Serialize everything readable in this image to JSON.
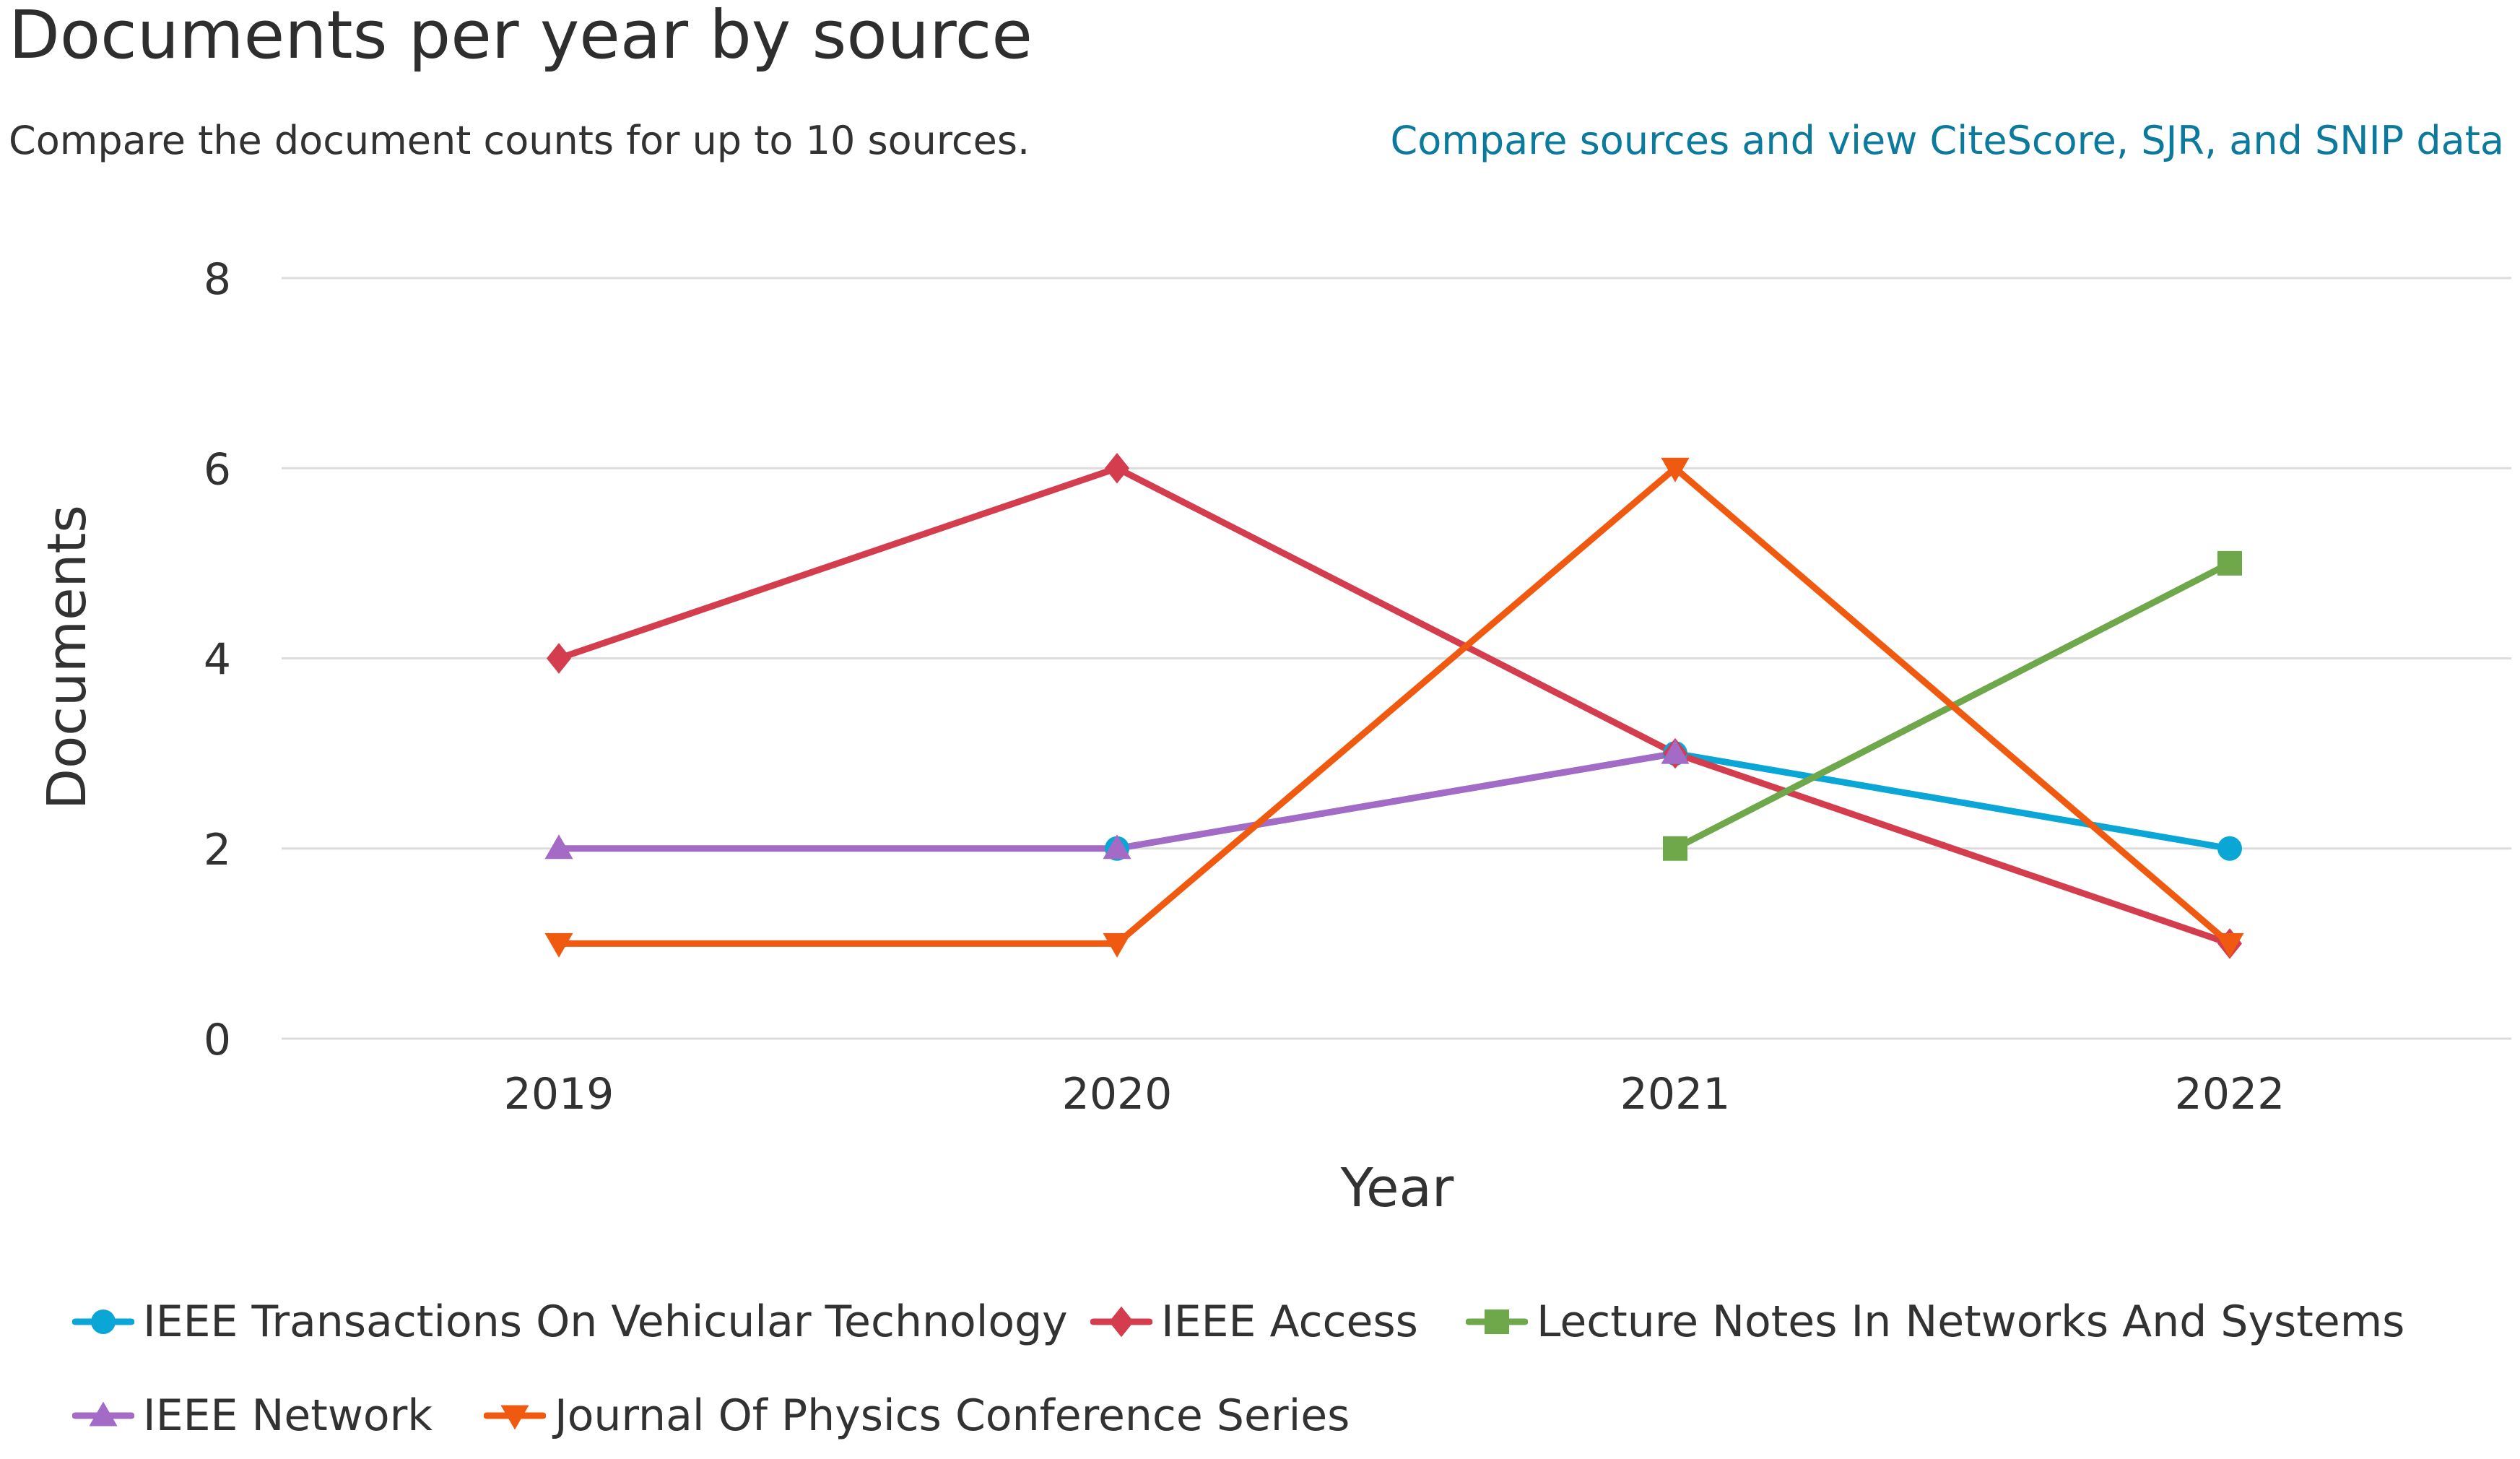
{
  "header": {
    "title": "Documents per year by source",
    "subtitle": "Compare the document counts for up to 10 sources.",
    "compare_link": "Compare sources and view CiteScore, SJR, and SNIP data"
  },
  "chart_data": {
    "type": "line",
    "title": "Documents per year by source",
    "xlabel": "Year",
    "ylabel": "Documents",
    "categories": [
      "2019",
      "2020",
      "2021",
      "2022"
    ],
    "y_ticks": [
      "0",
      "2",
      "4",
      "6",
      "8"
    ],
    "ylim": [
      0,
      8
    ],
    "grid": true,
    "legend_position": "bottom",
    "series": [
      {
        "name": "IEEE Transactions On Vehicular Technology",
        "marker": "circle",
        "color": "#0aa6d6",
        "values": [
          null,
          2,
          3,
          2
        ]
      },
      {
        "name": "IEEE Access",
        "marker": "diamond",
        "color": "#d33d4d",
        "values": [
          4,
          6,
          3,
          1
        ]
      },
      {
        "name": "Lecture Notes In Networks And Systems",
        "marker": "square",
        "color": "#6fa84a",
        "values": [
          null,
          null,
          2,
          5
        ]
      },
      {
        "name": "IEEE Network",
        "marker": "triangle-up",
        "color": "#a46bc6",
        "values": [
          2,
          2,
          3,
          null
        ]
      },
      {
        "name": "Journal Of Physics Conference Series",
        "marker": "triangle-down",
        "color": "#ef5a10",
        "values": [
          1,
          1,
          6,
          1
        ]
      }
    ]
  }
}
